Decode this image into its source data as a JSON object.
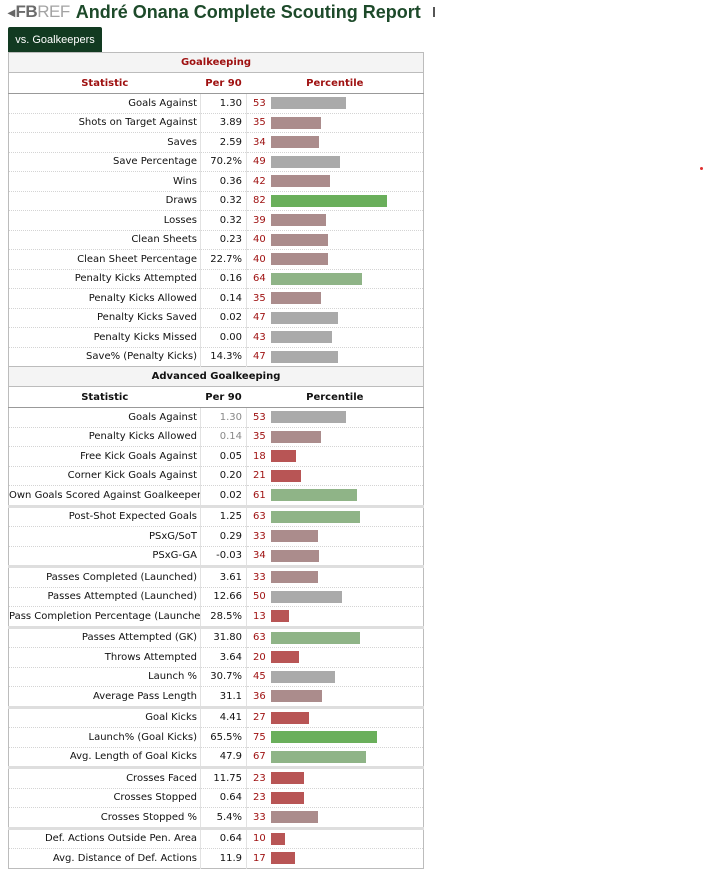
{
  "header": {
    "logo_fb": "FB",
    "logo_ref": "REF",
    "title": "André Onana Complete Scouting Report"
  },
  "tab": {
    "label": "vs. Goalkeepers"
  },
  "colors": {
    "tab_bg": "#123a21",
    "title": "#1d4a2a",
    "accent_red": "#9e0f0f",
    "bar_high": "#6aaf5b",
    "bar_high_mid": "#8fb487",
    "bar_mid": "#aaaaaa",
    "bar_low_mid": "#ab8c8c",
    "bar_low": "#b85555"
  },
  "sections": [
    {
      "id": "gk",
      "name": "Goalkeeping",
      "col_stat": "Statistic",
      "col_p90": "Per 90",
      "col_pct": "Percentile",
      "rows": [
        {
          "stat": "Goals Against",
          "p90": "1.30",
          "pct": 53
        },
        {
          "stat": "Shots on Target Against",
          "p90": "3.89",
          "pct": 35
        },
        {
          "stat": "Saves",
          "p90": "2.59",
          "pct": 34
        },
        {
          "stat": "Save Percentage",
          "p90": "70.2%",
          "pct": 49
        },
        {
          "stat": "Wins",
          "p90": "0.36",
          "pct": 42
        },
        {
          "stat": "Draws",
          "p90": "0.32",
          "pct": 82
        },
        {
          "stat": "Losses",
          "p90": "0.32",
          "pct": 39
        },
        {
          "stat": "Clean Sheets",
          "p90": "0.23",
          "pct": 40
        },
        {
          "stat": "Clean Sheet Percentage",
          "p90": "22.7%",
          "pct": 40
        },
        {
          "stat": "Penalty Kicks Attempted",
          "p90": "0.16",
          "pct": 64
        },
        {
          "stat": "Penalty Kicks Allowed",
          "p90": "0.14",
          "pct": 35
        },
        {
          "stat": "Penalty Kicks Saved",
          "p90": "0.02",
          "pct": 47
        },
        {
          "stat": "Penalty Kicks Missed",
          "p90": "0.00",
          "pct": 43
        },
        {
          "stat": "Save% (Penalty Kicks)",
          "p90": "14.3%",
          "pct": 47
        }
      ]
    },
    {
      "id": "adv",
      "name": "Advanced Goalkeeping",
      "col_stat": "Statistic",
      "col_p90": "Per 90",
      "col_pct": "Percentile",
      "rows": [
        {
          "stat": "Goals Against",
          "p90": "1.30",
          "pct": 53,
          "muted": true
        },
        {
          "stat": "Penalty Kicks Allowed",
          "p90": "0.14",
          "pct": 35,
          "muted": true
        },
        {
          "stat": "Free Kick Goals Against",
          "p90": "0.05",
          "pct": 18
        },
        {
          "stat": "Corner Kick Goals Against",
          "p90": "0.20",
          "pct": 21
        },
        {
          "stat": "Own Goals Scored Against Goalkeeper",
          "p90": "0.02",
          "pct": 61
        },
        {
          "stat": "Post-Shot Expected Goals",
          "p90": "1.25",
          "pct": 63,
          "sep": true
        },
        {
          "stat": "PSxG/SoT",
          "p90": "0.29",
          "pct": 33
        },
        {
          "stat": "PSxG-GA",
          "p90": "-0.03",
          "pct": 34
        },
        {
          "stat": "Passes Completed (Launched)",
          "p90": "3.61",
          "pct": 33,
          "sep": true
        },
        {
          "stat": "Passes Attempted (Launched)",
          "p90": "12.66",
          "pct": 50
        },
        {
          "stat": "Pass Completion Percentage (Launched)",
          "p90": "28.5%",
          "pct": 13
        },
        {
          "stat": "Passes Attempted (GK)",
          "p90": "31.80",
          "pct": 63,
          "sep": true
        },
        {
          "stat": "Throws Attempted",
          "p90": "3.64",
          "pct": 20
        },
        {
          "stat": "Launch %",
          "p90": "30.7%",
          "pct": 45
        },
        {
          "stat": "Average Pass Length",
          "p90": "31.1",
          "pct": 36
        },
        {
          "stat": "Goal Kicks",
          "p90": "4.41",
          "pct": 27,
          "sep": true
        },
        {
          "stat": "Launch% (Goal Kicks)",
          "p90": "65.5%",
          "pct": 75
        },
        {
          "stat": "Avg. Length of Goal Kicks",
          "p90": "47.9",
          "pct": 67
        },
        {
          "stat": "Crosses Faced",
          "p90": "11.75",
          "pct": 23,
          "sep": true
        },
        {
          "stat": "Crosses Stopped",
          "p90": "0.64",
          "pct": 23
        },
        {
          "stat": "Crosses Stopped %",
          "p90": "5.4%",
          "pct": 33
        },
        {
          "stat": "Def. Actions Outside Pen. Area",
          "p90": "0.64",
          "pct": 10,
          "sep": true
        },
        {
          "stat": "Avg. Distance of Def. Actions",
          "p90": "11.9",
          "pct": 17
        }
      ]
    }
  ]
}
